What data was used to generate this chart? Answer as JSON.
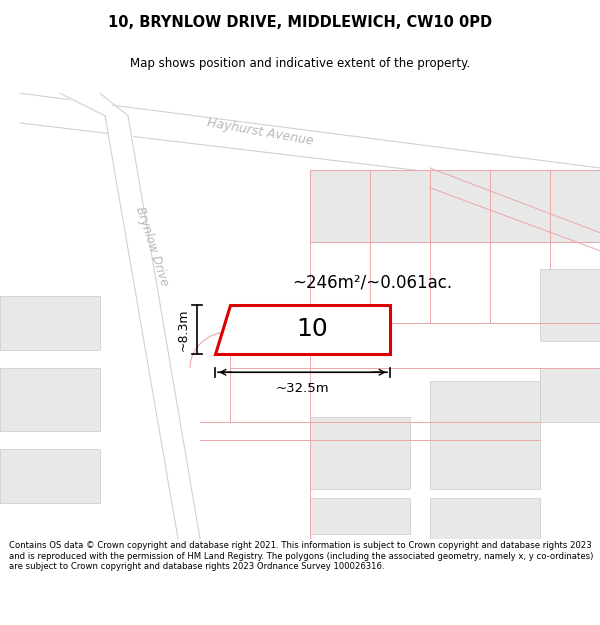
{
  "title_line1": "10, BRYNLOW DRIVE, MIDDLEWICH, CW10 0PD",
  "title_line2": "Map shows position and indicative extent of the property.",
  "footer_text": "Contains OS data © Crown copyright and database right 2021. This information is subject to Crown copyright and database rights 2023 and is reproduced with the permission of HM Land Registry. The polygons (including the associated geometry, namely x, y co-ordinates) are subject to Crown copyright and database rights 2023 Ordnance Survey 100026316.",
  "area_label": "~246m²/~0.061ac.",
  "number_label": "10",
  "width_label": "~32.5m",
  "height_label": "~8.3m",
  "bg_color": "#ffffff",
  "map_bg": "#ffffff",
  "road_color": "#ffffff",
  "plot_outline_color": "#dd0000",
  "block_color": "#e8e8e8",
  "road_line_color": "#e8a8a8",
  "title_bg": "#ffffff",
  "footer_bg": "#f2f2f2",
  "road_center_color": "#d0d0d0"
}
